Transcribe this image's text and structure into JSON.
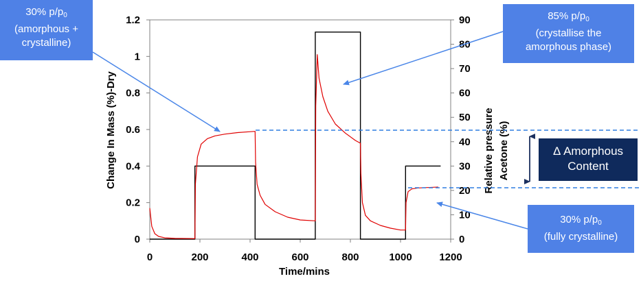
{
  "colors": {
    "pressure": "#000000",
    "mass": "#e00000",
    "callout_fill": "#4f81e6",
    "arrow": "#4a86e8",
    "guide": "#2f7de0",
    "delta_box": "#0f2a5c",
    "delta_arrow": "#1b2f5e"
  },
  "callouts": [
    {
      "pre": "30% p/p",
      "sub": "0",
      "rest": [
        "(amorphous +",
        "crystalline)"
      ]
    },
    {
      "pre": "85% p/p",
      "sub": "0",
      "rest": [
        "(crystallise the",
        "amorphous phase)"
      ]
    },
    {
      "pre": "30% p/p",
      "sub": "0",
      "rest": [
        "(fully crystalline)"
      ]
    }
  ],
  "delta_label": {
    "line1": "Δ Amorphous",
    "line2": "Content"
  },
  "chart_data": {
    "type": "line",
    "xlabel": "Time/mins",
    "ylabel": "Change In Mass (%)-Dry",
    "y2label_lines": [
      "Relative pressure",
      "Acetone (%)"
    ],
    "xlim": [
      0,
      1200
    ],
    "ylim": [
      0,
      1.2
    ],
    "y2lim": [
      0,
      90
    ],
    "xticks": [
      "0",
      "200",
      "400",
      "600",
      "800",
      "1000",
      "1200"
    ],
    "yticks": [
      "0",
      "0.2",
      "0.4",
      "0.6",
      "0.8",
      "1",
      "1.2"
    ],
    "y2ticks": [
      "0",
      "10",
      "20",
      "30",
      "40",
      "50",
      "60",
      "70",
      "80",
      "90"
    ],
    "grid": false,
    "series": [
      {
        "axis": "right",
        "color": "#000000",
        "x": [
          0,
          180,
          180,
          420,
          420,
          660,
          660,
          840,
          840,
          1020,
          1020,
          1160
        ],
        "values": [
          0,
          0,
          30,
          30,
          0,
          0,
          85,
          85,
          0,
          0,
          30,
          30
        ]
      },
      {
        "axis": "left",
        "color": "#e00000",
        "x": [
          0,
          8,
          20,
          35,
          60,
          100,
          180,
          182,
          190,
          205,
          230,
          260,
          300,
          350,
          400,
          420,
          422,
          428,
          440,
          460,
          500,
          550,
          600,
          660,
          662,
          668,
          675,
          690,
          710,
          740,
          780,
          820,
          840,
          842,
          848,
          860,
          880,
          920,
          960,
          1000,
          1020,
          1022,
          1030,
          1045,
          1070,
          1100,
          1150
        ],
        "values": [
          0.17,
          0.07,
          0.03,
          0.015,
          0.007,
          0.004,
          0.003,
          0.3,
          0.45,
          0.52,
          0.55,
          0.565,
          0.575,
          0.583,
          0.588,
          0.59,
          0.42,
          0.3,
          0.24,
          0.19,
          0.15,
          0.12,
          0.105,
          0.1,
          0.73,
          1.01,
          0.88,
          0.78,
          0.7,
          0.63,
          0.58,
          0.54,
          0.525,
          0.36,
          0.2,
          0.13,
          0.1,
          0.075,
          0.06,
          0.05,
          0.05,
          0.2,
          0.26,
          0.275,
          0.28,
          0.282,
          0.285
        ]
      }
    ]
  }
}
